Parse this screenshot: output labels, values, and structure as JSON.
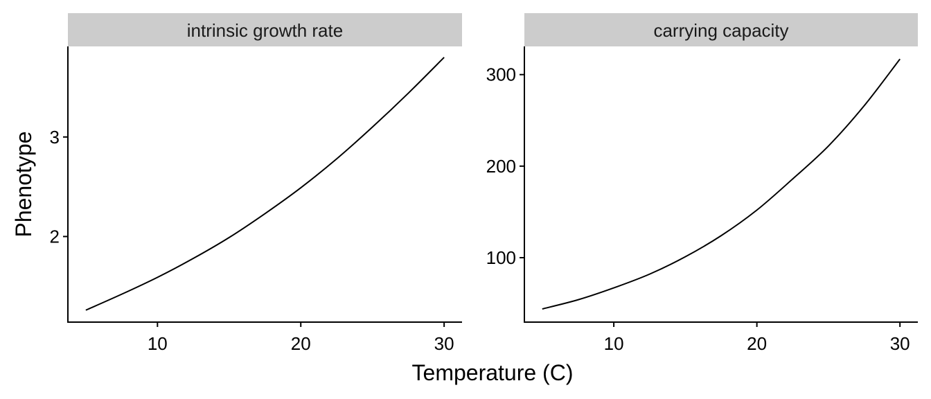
{
  "chart_data": {
    "type": "line",
    "xlabel": "Temperature (C)",
    "ylabel": "Phenotype",
    "line_color": "#000000",
    "strip_color": "#cccccc",
    "grid": false,
    "panels": [
      {
        "title": "intrinsic growth rate",
        "xlim": [
          3.75,
          31.25
        ],
        "ylim": [
          1.14,
          3.91
        ],
        "xticks": [
          10,
          20,
          30
        ],
        "yticks": [
          2,
          3
        ],
        "series": [
          {
            "x": [
              5,
              7.5,
              10,
              12.5,
              15,
              17.5,
              20,
              22.5,
              25,
              27.5,
              30
            ],
            "y": [
              1.26,
              1.42,
              1.59,
              1.78,
              1.99,
              2.23,
              2.49,
              2.78,
              3.1,
              3.44,
              3.8
            ]
          }
        ]
      },
      {
        "title": "carrying capacity",
        "xlim": [
          3.75,
          31.25
        ],
        "ylim": [
          29.6,
          330.8
        ],
        "xticks": [
          10,
          20,
          30
        ],
        "yticks": [
          100,
          200,
          300
        ],
        "series": [
          {
            "x": [
              5,
              7.5,
              10,
              12.5,
              15,
              17.5,
              20,
              22.5,
              25,
              27.5,
              30
            ],
            "y": [
              44,
              54,
              67,
              82,
              101,
              124,
              152,
              186,
              222,
              266,
              317
            ]
          }
        ]
      }
    ]
  }
}
